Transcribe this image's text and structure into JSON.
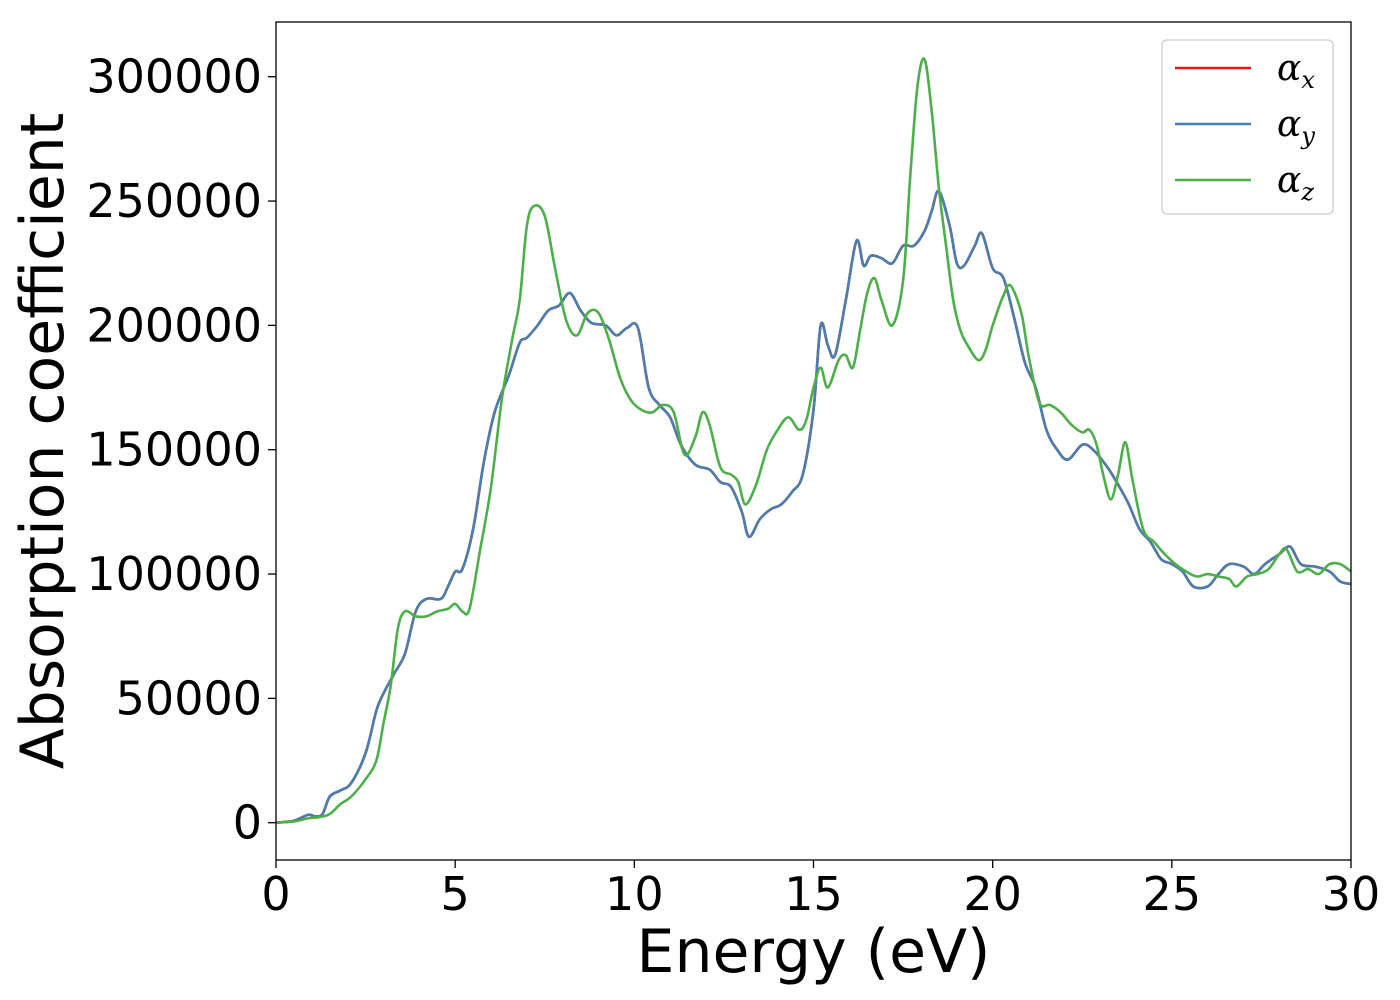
{
  "chart_data": {
    "type": "line",
    "title": "",
    "xlabel": "Energy (eV)",
    "ylabel": "Absorption coefficient",
    "xlim": [
      0,
      30
    ],
    "ylim": [
      -15000,
      322000
    ],
    "xticks": [
      0,
      5,
      10,
      15,
      20,
      25,
      30
    ],
    "yticks": [
      0,
      50000,
      100000,
      150000,
      200000,
      250000,
      300000
    ],
    "grid": false,
    "legend_position": "top-right",
    "series": [
      {
        "name": "α_x",
        "legend_base": "α",
        "legend_sub": "x",
        "color": "#e41a1c",
        "x": [
          0,
          0.5,
          0.9,
          1.1,
          1.3,
          1.5,
          1.8,
          2.1,
          2.5,
          2.8,
          3.0,
          3.3,
          3.6,
          3.9,
          4.2,
          4.6,
          4.8,
          5.0,
          5.2,
          5.5,
          5.8,
          6.1,
          6.5,
          6.8,
          7.0,
          7.3,
          7.6,
          7.9,
          8.2,
          8.5,
          8.8,
          9.2,
          9.5,
          9.8,
          10.1,
          10.4,
          10.7,
          11.0,
          11.3,
          11.7,
          12.1,
          12.4,
          12.7,
          13.0,
          13.2,
          13.5,
          13.8,
          14.1,
          14.4,
          14.7,
          15.0,
          15.2,
          15.4,
          15.6,
          15.9,
          16.2,
          16.4,
          16.6,
          16.9,
          17.2,
          17.5,
          17.8,
          18.1,
          18.3,
          18.5,
          18.8,
          19.0,
          19.2,
          19.5,
          19.7,
          20.0,
          20.3,
          20.6,
          20.9,
          21.2,
          21.5,
          21.8,
          22.1,
          22.5,
          22.8,
          23.2,
          23.5,
          23.8,
          24.1,
          24.4,
          24.7,
          25.0,
          25.3,
          25.6,
          26.0,
          26.3,
          26.6,
          27.0,
          27.3,
          27.6,
          28.0,
          28.3,
          28.6,
          29.0,
          29.4,
          29.7,
          30.0
        ],
        "y": [
          0,
          800,
          3200,
          2500,
          3500,
          10500,
          13000,
          16000,
          28000,
          45000,
          52000,
          60000,
          68000,
          85000,
          90000,
          90000,
          95000,
          101000,
          102000,
          118000,
          145000,
          165000,
          180000,
          193000,
          195000,
          200000,
          206000,
          208000,
          213000,
          206000,
          201000,
          200000,
          196000,
          199000,
          199000,
          175000,
          168000,
          163000,
          152000,
          144000,
          142000,
          137000,
          135000,
          125000,
          115000,
          122000,
          126000,
          128000,
          133000,
          140000,
          166000,
          200000,
          192000,
          188000,
          210000,
          234000,
          224000,
          228000,
          227000,
          225000,
          232000,
          232000,
          238000,
          246000,
          254000,
          240000,
          225000,
          224000,
          232000,
          237000,
          223000,
          219000,
          203000,
          185000,
          175000,
          158000,
          150000,
          146000,
          152000,
          150000,
          143000,
          136000,
          128000,
          118000,
          113000,
          106000,
          104000,
          101000,
          95000,
          95000,
          100000,
          104000,
          103000,
          100000,
          104000,
          108000,
          111000,
          104000,
          103000,
          101000,
          97000,
          96000
        ]
      },
      {
        "name": "α_y",
        "legend_base": "α",
        "legend_sub": "y",
        "color": "#4a7eaf",
        "x": [
          0,
          0.5,
          0.9,
          1.1,
          1.3,
          1.5,
          1.8,
          2.1,
          2.5,
          2.8,
          3.0,
          3.3,
          3.6,
          3.9,
          4.2,
          4.6,
          4.8,
          5.0,
          5.2,
          5.5,
          5.8,
          6.1,
          6.5,
          6.8,
          7.0,
          7.3,
          7.6,
          7.9,
          8.2,
          8.5,
          8.8,
          9.2,
          9.5,
          9.8,
          10.1,
          10.4,
          10.7,
          11.0,
          11.3,
          11.7,
          12.1,
          12.4,
          12.7,
          13.0,
          13.2,
          13.5,
          13.8,
          14.1,
          14.4,
          14.7,
          15.0,
          15.2,
          15.4,
          15.6,
          15.9,
          16.2,
          16.4,
          16.6,
          16.9,
          17.2,
          17.5,
          17.8,
          18.1,
          18.3,
          18.5,
          18.8,
          19.0,
          19.2,
          19.5,
          19.7,
          20.0,
          20.3,
          20.6,
          20.9,
          21.2,
          21.5,
          21.8,
          22.1,
          22.5,
          22.8,
          23.2,
          23.5,
          23.8,
          24.1,
          24.4,
          24.7,
          25.0,
          25.3,
          25.6,
          26.0,
          26.3,
          26.6,
          27.0,
          27.3,
          27.6,
          28.0,
          28.3,
          28.6,
          29.0,
          29.4,
          29.7,
          30.0
        ],
        "y": [
          0,
          800,
          3200,
          2500,
          3500,
          10500,
          13000,
          16000,
          28000,
          45000,
          52000,
          60000,
          68000,
          85000,
          90000,
          90000,
          95000,
          101000,
          102000,
          118000,
          145000,
          165000,
          180000,
          193000,
          195000,
          200000,
          206000,
          208000,
          213000,
          206000,
          201000,
          200000,
          196000,
          199000,
          199000,
          175000,
          168000,
          163000,
          152000,
          144000,
          142000,
          137000,
          135000,
          125000,
          115000,
          122000,
          126000,
          128000,
          133000,
          140000,
          166000,
          200000,
          192000,
          188000,
          210000,
          234000,
          224000,
          228000,
          227000,
          225000,
          232000,
          232000,
          238000,
          246000,
          254000,
          240000,
          225000,
          224000,
          232000,
          237000,
          223000,
          219000,
          203000,
          185000,
          175000,
          158000,
          150000,
          146000,
          152000,
          150000,
          143000,
          136000,
          128000,
          118000,
          113000,
          106000,
          104000,
          101000,
          95000,
          95000,
          100000,
          104000,
          103000,
          100000,
          104000,
          108000,
          111000,
          104000,
          103000,
          101000,
          97000,
          96000
        ]
      },
      {
        "name": "α_z",
        "legend_base": "α",
        "legend_sub": "z",
        "color": "#4daf4a",
        "x": [
          0,
          0.5,
          0.9,
          1.2,
          1.5,
          1.8,
          2.1,
          2.5,
          2.8,
          3.0,
          3.2,
          3.4,
          3.6,
          3.9,
          4.2,
          4.5,
          4.8,
          5.0,
          5.2,
          5.4,
          5.7,
          6.0,
          6.3,
          6.6,
          6.8,
          7.0,
          7.2,
          7.5,
          7.8,
          8.1,
          8.4,
          8.7,
          9.0,
          9.3,
          9.6,
          9.9,
          10.2,
          10.5,
          10.8,
          11.1,
          11.4,
          11.7,
          11.9,
          12.1,
          12.4,
          12.7,
          12.9,
          13.1,
          13.4,
          13.7,
          14.0,
          14.3,
          14.6,
          14.8,
          15.0,
          15.2,
          15.4,
          15.7,
          15.9,
          16.1,
          16.3,
          16.5,
          16.7,
          16.9,
          17.2,
          17.5,
          17.7,
          17.9,
          18.1,
          18.3,
          18.5,
          18.7,
          18.9,
          19.1,
          19.3,
          19.6,
          19.8,
          20.0,
          20.3,
          20.5,
          20.8,
          21.0,
          21.3,
          21.6,
          21.9,
          22.2,
          22.5,
          22.7,
          22.9,
          23.1,
          23.3,
          23.5,
          23.7,
          23.9,
          24.2,
          24.5,
          24.8,
          25.1,
          25.4,
          25.7,
          26.0,
          26.3,
          26.6,
          26.8,
          27.1,
          27.4,
          27.7,
          28.0,
          28.2,
          28.5,
          28.8,
          29.1,
          29.4,
          29.7,
          30.0
        ],
        "y": [
          0,
          500,
          1800,
          2200,
          3500,
          7500,
          10500,
          17500,
          25000,
          40000,
          55000,
          78000,
          85000,
          83000,
          83000,
          85000,
          86000,
          88000,
          85000,
          86000,
          110000,
          135000,
          170000,
          195000,
          210000,
          240000,
          248000,
          244000,
          222000,
          202000,
          196000,
          205000,
          205000,
          194000,
          179000,
          170000,
          166000,
          165000,
          168000,
          165000,
          148000,
          155000,
          165000,
          160000,
          143000,
          140000,
          137000,
          128000,
          136000,
          150000,
          158000,
          163000,
          158000,
          162000,
          175000,
          183000,
          175000,
          186000,
          188000,
          183000,
          198000,
          213000,
          219000,
          210000,
          200000,
          218000,
          260000,
          296000,
          307000,
          286000,
          255000,
          232000,
          210000,
          198000,
          192000,
          186000,
          190000,
          200000,
          212000,
          216000,
          205000,
          188000,
          169000,
          168000,
          165000,
          160000,
          157000,
          158000,
          152000,
          139000,
          130000,
          140000,
          153000,
          138000,
          118000,
          113000,
          108000,
          104000,
          101000,
          99000,
          100000,
          99000,
          98000,
          95000,
          99000,
          100000,
          102000,
          108000,
          110000,
          101000,
          102000,
          100000,
          104000,
          104000,
          101000
        ]
      }
    ]
  }
}
